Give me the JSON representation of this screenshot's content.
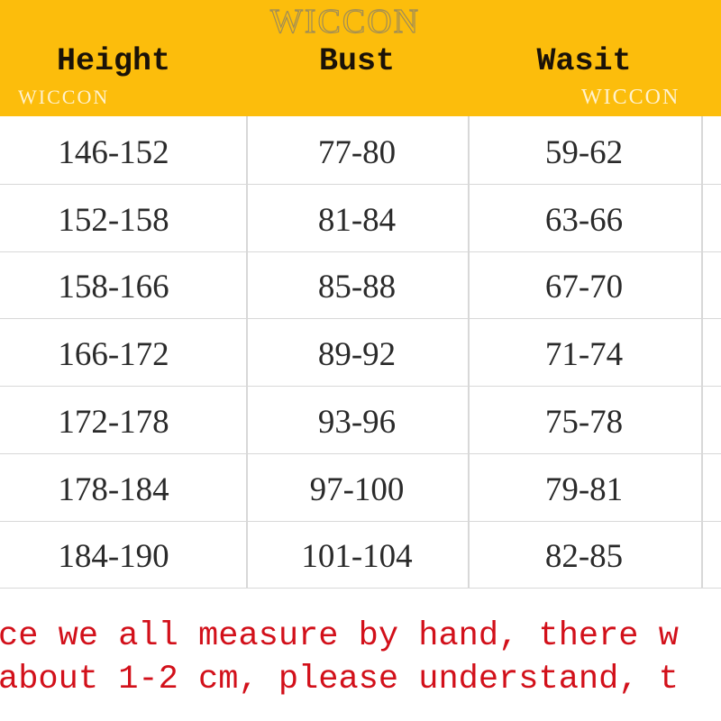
{
  "table": {
    "headers": [
      "Height",
      "Bust",
      "Wasit"
    ],
    "rows": [
      [
        "146-152",
        "77-80",
        "59-62"
      ],
      [
        "152-158",
        "81-84",
        "63-66"
      ],
      [
        "158-166",
        "85-88",
        "67-70"
      ],
      [
        "166-172",
        "89-92",
        "71-74"
      ],
      [
        "172-178",
        "93-96",
        "75-78"
      ],
      [
        "178-184",
        "97-100",
        "79-81"
      ],
      [
        "184-190",
        "101-104",
        "82-85"
      ]
    ]
  },
  "note": {
    "line1": "ce we all measure by hand, there w",
    "line2": "about 1-2 cm, please understand, t"
  },
  "watermark": "WICCON",
  "colors": {
    "header_bg": "#fcbd0c",
    "note_text": "#d2101a"
  }
}
